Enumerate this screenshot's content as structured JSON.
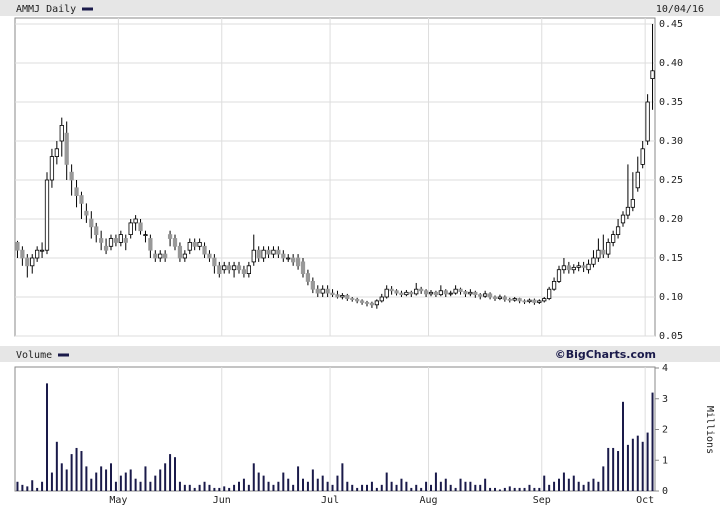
{
  "chart_data": [
    {
      "type": "candlestick",
      "title": "AMMJ Daily",
      "date": "10/04/16",
      "up_color": "#ffffff",
      "down_color": "#999999",
      "wick_color": "#000000",
      "ylim": [
        0.05,
        0.45
      ],
      "yticks": [
        0.05,
        {
          "value": 0.1,
          "label": "0.10"
        },
        0.15,
        {
          "value": 0.2,
          "label": "0.20"
        },
        0.25,
        {
          "value": 0.3,
          "label": "0.30"
        },
        0.35,
        {
          "value": 0.4,
          "label": "0.40"
        },
        0.45
      ],
      "grid": true,
      "open": [
        0.17,
        0.16,
        0.15,
        0.14,
        0.15,
        0.16,
        0.16,
        0.25,
        0.28,
        0.3,
        0.31,
        0.26,
        0.24,
        0.23,
        0.21,
        0.2,
        0.19,
        0.175,
        0.165,
        0.165,
        0.175,
        0.17,
        0.175,
        0.18,
        0.195,
        0.195,
        0.18,
        0.175,
        0.155,
        0.15,
        0.155,
        0.18,
        0.175,
        0.165,
        0.15,
        0.16,
        0.17,
        0.165,
        0.165,
        0.155,
        0.15,
        0.14,
        0.135,
        0.14,
        0.135,
        0.14,
        0.135,
        0.13,
        0.145,
        0.16,
        0.15,
        0.16,
        0.155,
        0.16,
        0.155,
        0.15,
        0.15,
        0.15,
        0.145,
        0.13,
        0.12,
        0.11,
        0.105,
        0.11,
        0.105,
        0.103,
        0.1,
        0.102,
        0.098,
        0.097,
        0.095,
        0.093,
        0.092,
        0.09,
        0.095,
        0.1,
        0.11,
        0.108,
        0.105,
        0.103,
        0.106,
        0.104,
        0.11,
        0.108,
        0.104,
        0.106,
        0.103,
        0.108,
        0.104,
        0.105,
        0.11,
        0.107,
        0.104,
        0.106,
        0.103,
        0.101,
        0.104,
        0.1,
        0.098,
        0.1,
        0.097,
        0.096,
        0.098,
        0.095,
        0.094,
        0.096,
        0.093,
        0.095,
        0.098,
        0.11,
        0.12,
        0.135,
        0.14,
        0.135,
        0.138,
        0.14,
        0.135,
        0.142,
        0.15,
        0.16,
        0.155,
        0.17,
        0.18,
        0.195,
        0.205,
        0.215,
        0.24,
        0.27,
        0.3,
        0.38
      ],
      "high": [
        0.172,
        0.165,
        0.155,
        0.155,
        0.165,
        0.17,
        0.26,
        0.29,
        0.3,
        0.33,
        0.325,
        0.27,
        0.25,
        0.235,
        0.22,
        0.21,
        0.195,
        0.185,
        0.175,
        0.18,
        0.18,
        0.185,
        0.18,
        0.2,
        0.205,
        0.2,
        0.185,
        0.18,
        0.16,
        0.16,
        0.16,
        0.185,
        0.18,
        0.17,
        0.16,
        0.175,
        0.175,
        0.175,
        0.17,
        0.16,
        0.155,
        0.145,
        0.145,
        0.145,
        0.145,
        0.145,
        0.14,
        0.145,
        0.18,
        0.165,
        0.165,
        0.165,
        0.165,
        0.165,
        0.16,
        0.155,
        0.155,
        0.155,
        0.15,
        0.135,
        0.125,
        0.115,
        0.115,
        0.115,
        0.11,
        0.108,
        0.105,
        0.104,
        0.1,
        0.099,
        0.097,
        0.095,
        0.094,
        0.097,
        0.104,
        0.115,
        0.114,
        0.11,
        0.108,
        0.109,
        0.108,
        0.118,
        0.113,
        0.11,
        0.109,
        0.108,
        0.115,
        0.11,
        0.108,
        0.115,
        0.112,
        0.109,
        0.11,
        0.108,
        0.105,
        0.108,
        0.106,
        0.102,
        0.103,
        0.102,
        0.099,
        0.1,
        0.099,
        0.097,
        0.098,
        0.098,
        0.097,
        0.1,
        0.113,
        0.125,
        0.14,
        0.15,
        0.145,
        0.142,
        0.145,
        0.145,
        0.148,
        0.16,
        0.175,
        0.18,
        0.175,
        0.185,
        0.2,
        0.21,
        0.27,
        0.26,
        0.28,
        0.3,
        0.36,
        0.45
      ],
      "low": [
        0.15,
        0.14,
        0.125,
        0.13,
        0.145,
        0.15,
        0.155,
        0.24,
        0.27,
        0.28,
        0.25,
        0.23,
        0.215,
        0.2,
        0.195,
        0.175,
        0.17,
        0.16,
        0.155,
        0.16,
        0.165,
        0.165,
        0.16,
        0.175,
        0.185,
        0.18,
        0.17,
        0.15,
        0.145,
        0.145,
        0.145,
        0.165,
        0.16,
        0.145,
        0.145,
        0.155,
        0.16,
        0.16,
        0.15,
        0.145,
        0.13,
        0.125,
        0.13,
        0.13,
        0.125,
        0.13,
        0.125,
        0.125,
        0.14,
        0.145,
        0.145,
        0.15,
        0.15,
        0.15,
        0.145,
        0.145,
        0.14,
        0.135,
        0.125,
        0.115,
        0.105,
        0.1,
        0.1,
        0.1,
        0.1,
        0.098,
        0.097,
        0.095,
        0.094,
        0.092,
        0.09,
        0.088,
        0.086,
        0.085,
        0.093,
        0.098,
        0.103,
        0.102,
        0.1,
        0.101,
        0.1,
        0.102,
        0.104,
        0.1,
        0.101,
        0.1,
        0.101,
        0.1,
        0.101,
        0.103,
        0.103,
        0.1,
        0.101,
        0.099,
        0.097,
        0.099,
        0.097,
        0.095,
        0.096,
        0.094,
        0.093,
        0.094,
        0.092,
        0.091,
        0.092,
        0.09,
        0.091,
        0.093,
        0.096,
        0.108,
        0.118,
        0.13,
        0.13,
        0.13,
        0.133,
        0.132,
        0.13,
        0.138,
        0.145,
        0.15,
        0.15,
        0.165,
        0.175,
        0.19,
        0.2,
        0.21,
        0.235,
        0.265,
        0.295,
        0.34
      ],
      "close": [
        0.16,
        0.15,
        0.14,
        0.15,
        0.16,
        0.16,
        0.25,
        0.28,
        0.29,
        0.32,
        0.27,
        0.25,
        0.23,
        0.22,
        0.205,
        0.19,
        0.18,
        0.17,
        0.16,
        0.175,
        0.17,
        0.18,
        0.17,
        0.195,
        0.2,
        0.185,
        0.18,
        0.16,
        0.15,
        0.155,
        0.15,
        0.175,
        0.165,
        0.15,
        0.155,
        0.17,
        0.165,
        0.17,
        0.155,
        0.15,
        0.14,
        0.13,
        0.14,
        0.135,
        0.14,
        0.135,
        0.13,
        0.14,
        0.16,
        0.15,
        0.16,
        0.155,
        0.16,
        0.155,
        0.15,
        0.15,
        0.145,
        0.14,
        0.13,
        0.12,
        0.11,
        0.105,
        0.11,
        0.105,
        0.103,
        0.1,
        0.102,
        0.098,
        0.097,
        0.095,
        0.093,
        0.092,
        0.09,
        0.095,
        0.1,
        0.11,
        0.108,
        0.105,
        0.103,
        0.106,
        0.104,
        0.11,
        0.108,
        0.104,
        0.106,
        0.103,
        0.108,
        0.104,
        0.105,
        0.11,
        0.107,
        0.104,
        0.106,
        0.103,
        0.101,
        0.104,
        0.1,
        0.098,
        0.1,
        0.097,
        0.096,
        0.098,
        0.095,
        0.094,
        0.096,
        0.093,
        0.095,
        0.098,
        0.11,
        0.12,
        0.135,
        0.14,
        0.135,
        0.138,
        0.14,
        0.138,
        0.142,
        0.15,
        0.16,
        0.155,
        0.17,
        0.18,
        0.19,
        0.205,
        0.215,
        0.225,
        0.26,
        0.29,
        0.35,
        0.39
      ]
    },
    {
      "type": "bar",
      "title": "Volume",
      "source": "©BigCharts.com",
      "ylabel": "Millions",
      "color": "#1a1a4a",
      "ylim": [
        0,
        4
      ],
      "yticks": [
        0,
        1,
        2,
        3,
        4
      ],
      "xticks": [
        {
          "value": 21,
          "label": "May"
        },
        {
          "value": 42,
          "label": "Jun"
        },
        {
          "value": 64,
          "label": "Jul"
        },
        {
          "value": 84,
          "label": "Aug"
        },
        {
          "value": 107,
          "label": "Sep"
        },
        {
          "value": 128,
          "label": "Oct"
        }
      ],
      "values": [
        0.3,
        0.2,
        0.15,
        0.35,
        0.1,
        0.3,
        3.5,
        0.6,
        1.6,
        0.9,
        0.7,
        1.2,
        1.4,
        1.3,
        0.8,
        0.4,
        0.6,
        0.8,
        0.7,
        0.9,
        0.3,
        0.5,
        0.6,
        0.7,
        0.4,
        0.3,
        0.8,
        0.3,
        0.5,
        0.7,
        0.9,
        1.2,
        1.1,
        0.3,
        0.2,
        0.2,
        0.1,
        0.2,
        0.3,
        0.2,
        0.1,
        0.1,
        0.15,
        0.1,
        0.2,
        0.3,
        0.4,
        0.2,
        0.9,
        0.6,
        0.5,
        0.3,
        0.2,
        0.3,
        0.6,
        0.4,
        0.2,
        0.8,
        0.4,
        0.3,
        0.7,
        0.4,
        0.5,
        0.3,
        0.2,
        0.5,
        0.9,
        0.3,
        0.2,
        0.1,
        0.2,
        0.2,
        0.3,
        0.1,
        0.2,
        0.6,
        0.3,
        0.2,
        0.4,
        0.3,
        0.1,
        0.2,
        0.1,
        0.3,
        0.2,
        0.6,
        0.3,
        0.4,
        0.2,
        0.1,
        0.4,
        0.3,
        0.3,
        0.2,
        0.2,
        0.4,
        0.1,
        0.1,
        0.05,
        0.1,
        0.15,
        0.1,
        0.1,
        0.1,
        0.2,
        0.1,
        0.1,
        0.5,
        0.2,
        0.3,
        0.4,
        0.6,
        0.4,
        0.5,
        0.3,
        0.2,
        0.3,
        0.4,
        0.3,
        0.8,
        1.4,
        1.4,
        1.3,
        2.9,
        1.5,
        1.7,
        1.8,
        1.6,
        1.9,
        3.2
      ]
    }
  ]
}
